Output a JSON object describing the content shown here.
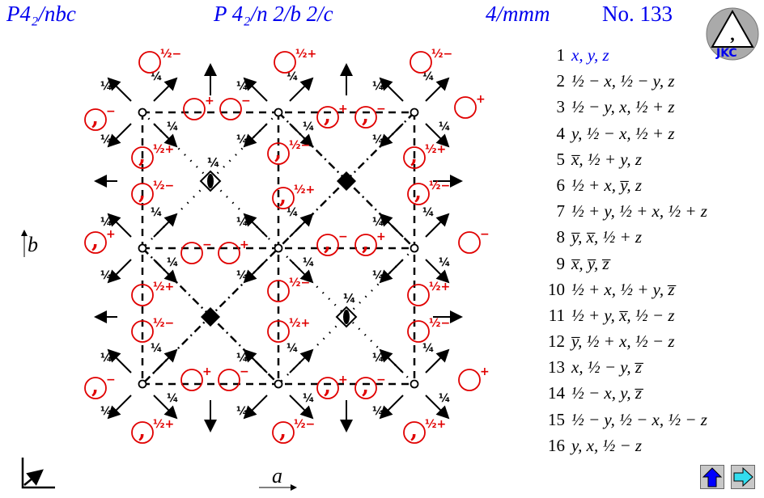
{
  "header": {
    "short_symbol": "P4₂/nbc",
    "full_symbol": "P 4₂/n 2/b 2/c",
    "point_group": "4/mmm",
    "number": "No. 133"
  },
  "axes": {
    "a": "a",
    "b": "b"
  },
  "height_labels": {
    "plus": "+",
    "minus": "−",
    "half": "½",
    "quarter": "¼"
  },
  "colors": {
    "title": "#0000ee",
    "symbol": "#e00000",
    "up_button": "#0000ff",
    "next_button": "#33ddee"
  },
  "logo": {
    "text": "JKC"
  },
  "operations": [
    {
      "n": "1",
      "text": "x, y, z"
    },
    {
      "n": "2",
      "text": "½ − x, ½ − y, z"
    },
    {
      "n": "3",
      "text": "½ − y, x, ½ + z"
    },
    {
      "n": "4",
      "text": "y, ½ − x, ½ + z"
    },
    {
      "n": "5",
      "text": "x̅, ½ + y, z"
    },
    {
      "n": "6",
      "text": "½ + x, y̅, z"
    },
    {
      "n": "7",
      "text": "½ + y, ½ + x, ½ + z"
    },
    {
      "n": "8",
      "text": "y̅, x̅, ½ + z"
    },
    {
      "n": "9",
      "text": "x̅, y̅, z̅"
    },
    {
      "n": "10",
      "text": "½ + x, ½ + y, z̅"
    },
    {
      "n": "11",
      "text": "½ + y, x̅, ½ − z"
    },
    {
      "n": "12",
      "text": "y̅, ½ + x, ½ − z"
    },
    {
      "n": "13",
      "text": "x, ½ − y, z̅"
    },
    {
      "n": "14",
      "text": "½ − x, y, z̅"
    },
    {
      "n": "15",
      "text": "½ − y, ½ − x, ½ − z"
    },
    {
      "n": "16",
      "text": "y, x, ½ − z"
    }
  ],
  "nav": {
    "up_icon": "arrow-up-icon",
    "next_icon": "arrow-right-icon"
  }
}
